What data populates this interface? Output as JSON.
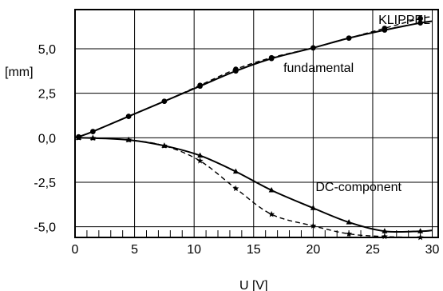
{
  "chart_data": {
    "type": "line",
    "title": "",
    "brand": "KLIPPEL",
    "xlabel": "U  [V]",
    "ylabel": "[mm]",
    "xlim": [
      0,
      30.5
    ],
    "ylim": [
      -5.6,
      7.2
    ],
    "x_ticks": [
      0,
      5,
      10,
      15,
      20,
      25,
      30
    ],
    "y_ticks": [
      -5.0,
      -2.5,
      0.0,
      2.5,
      5.0
    ],
    "x_tick_labels": [
      "0",
      "5",
      "10",
      "15",
      "20",
      "25",
      "30"
    ],
    "y_tick_labels": [
      "-5,0",
      "-2,5",
      "0,0",
      "2,5",
      "5,0"
    ],
    "grid": true,
    "annotations": [
      {
        "text": "fundamental",
        "x": 17.5,
        "y": 3.7
      },
      {
        "text": "DC-component",
        "x": 20.2,
        "y": -3.0
      }
    ],
    "series": [
      {
        "line_style": "solid",
        "marker": "dot",
        "x": [
          0.3,
          1.5,
          4.5,
          7.5,
          10.5,
          13.5,
          16.5,
          20,
          23,
          26,
          29,
          30
        ],
        "y": [
          0.05,
          0.35,
          1.2,
          2.05,
          2.9,
          3.75,
          4.45,
          5.05,
          5.6,
          6.05,
          6.45,
          6.55
        ]
      },
      {
        "line_style": "dashed",
        "marker": "dot",
        "x": [
          0.3,
          1.5,
          4.5,
          7.5,
          10.5,
          13.5,
          16.5,
          20,
          23,
          26,
          29,
          30
        ],
        "y": [
          0.05,
          0.35,
          1.2,
          2.05,
          2.95,
          3.85,
          4.5,
          5.05,
          5.6,
          6.15,
          6.7,
          6.8
        ]
      },
      {
        "line_style": "solid",
        "marker": "triangle",
        "x": [
          0.3,
          1.5,
          4.5,
          7.5,
          10.5,
          13.5,
          16.5,
          20,
          23,
          26,
          29,
          30
        ],
        "y": [
          0.0,
          -0.02,
          -0.12,
          -0.45,
          -1.0,
          -1.9,
          -2.95,
          -3.95,
          -4.75,
          -5.25,
          -5.25,
          -5.2
        ]
      },
      {
        "line_style": "dashed",
        "marker": "star",
        "x": [
          0.3,
          1.5,
          4.5,
          7.5,
          10.5,
          13.5,
          16.5,
          20,
          23,
          26,
          29,
          30
        ],
        "y": [
          0.0,
          -0.02,
          -0.12,
          -0.45,
          -1.3,
          -2.85,
          -4.3,
          -4.95,
          -5.4,
          -5.55,
          -5.6,
          -5.6
        ]
      }
    ]
  }
}
